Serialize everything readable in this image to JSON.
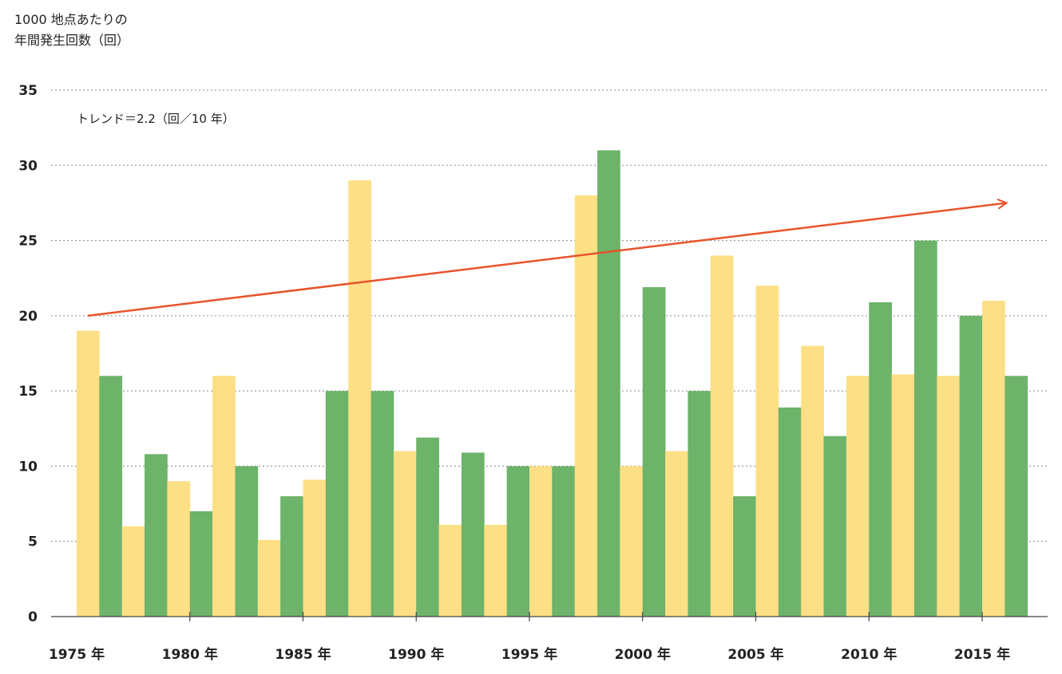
{
  "chart_data": {
    "type": "bar",
    "ylabel_lines": [
      "1000 地点あたりの",
      "年間発生回数（回）"
    ],
    "xlabel": "",
    "ylim": [
      0,
      35
    ],
    "yticks": [
      0,
      5,
      10,
      15,
      20,
      25,
      30,
      35
    ],
    "grid": true,
    "x": [
      1976,
      1977,
      1978,
      1979,
      1980,
      1981,
      1982,
      1983,
      1984,
      1985,
      1986,
      1987,
      1988,
      1989,
      1990,
      1991,
      1992,
      1993,
      1994,
      1995,
      1996,
      1997,
      1998,
      1999,
      2000,
      2001,
      2002,
      2003,
      2004,
      2005,
      2006,
      2007,
      2008,
      2009,
      2010,
      2011,
      2012,
      2013,
      2014,
      2015,
      2016,
      2017
    ],
    "values": [
      19,
      16,
      6,
      10.8,
      9,
      7,
      16,
      10,
      5.1,
      8,
      9.1,
      15,
      29,
      15,
      11,
      11.9,
      6.1,
      10.9,
      6.1,
      10,
      10,
      10,
      28,
      31,
      10,
      21.9,
      11,
      15,
      24,
      8,
      22,
      13.9,
      18,
      12,
      16,
      20.9,
      16.1,
      25,
      16,
      20,
      21,
      16
    ],
    "xtick_labels": [
      {
        "year": 1975,
        "label": "1975 年"
      },
      {
        "year": 1980,
        "label": "1980 年"
      },
      {
        "year": 1985,
        "label": "1985 年"
      },
      {
        "year": 1990,
        "label": "1990 年"
      },
      {
        "year": 1995,
        "label": "1995 年"
      },
      {
        "year": 2000,
        "label": "2000 年"
      },
      {
        "year": 2005,
        "label": "2005 年"
      },
      {
        "year": 2010,
        "label": "2010 年"
      },
      {
        "year": 2015,
        "label": "2015 年"
      }
    ],
    "trend": {
      "label": "トレンド＝2.2（回／10 年）",
      "start": {
        "x": 1976,
        "y": 20
      },
      "end": {
        "x": 2017,
        "y": 27.5
      }
    },
    "colors": {
      "yellow": "#fddf85",
      "green": "#6db36a",
      "trend": "#e8532b",
      "grid": "#888888",
      "axis": "#444444"
    }
  }
}
